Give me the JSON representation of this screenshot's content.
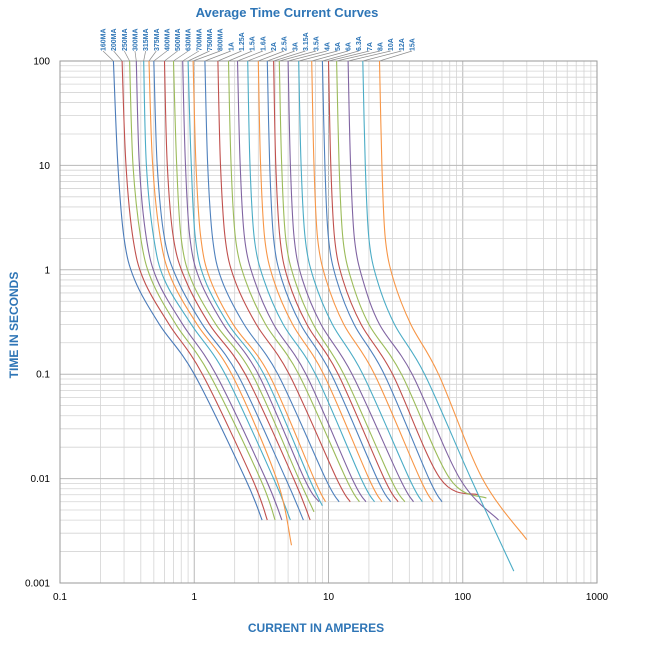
{
  "chart_data": {
    "type": "line",
    "title": "Average Time Current Curves",
    "xlabel": "CURRENT IN AMPERES",
    "ylabel": "TIME IN SECONDS",
    "x_scale": "log",
    "y_scale": "log",
    "xlim": [
      0.1,
      1000
    ],
    "ylim": [
      0.001,
      100
    ],
    "x_ticks": [
      "0.1",
      "1",
      "10",
      "100",
      "1000"
    ],
    "y_ticks": [
      "0.001",
      "0.01",
      "0.1",
      "1",
      "10",
      "100"
    ],
    "grid": true,
    "series": [
      {
        "name": "160MA",
        "color": "#4a7ab8",
        "points": [
          [
            0.25,
            100
          ],
          [
            0.27,
            10
          ],
          [
            0.3,
            2
          ],
          [
            0.36,
            0.8
          ],
          [
            0.55,
            0.3
          ],
          [
            1,
            0.1
          ],
          [
            2.4,
            0.01
          ],
          [
            3.2,
            0.004
          ]
        ]
      },
      {
        "name": "200MA",
        "color": "#c0504d",
        "points": [
          [
            0.29,
            100
          ],
          [
            0.31,
            10
          ],
          [
            0.35,
            2
          ],
          [
            0.42,
            0.8
          ],
          [
            0.65,
            0.3
          ],
          [
            1.15,
            0.1
          ],
          [
            2.7,
            0.01
          ],
          [
            3.5,
            0.004
          ]
        ]
      },
      {
        "name": "250MA",
        "color": "#9bbb59",
        "points": [
          [
            0.33,
            100
          ],
          [
            0.35,
            10
          ],
          [
            0.4,
            2
          ],
          [
            0.48,
            0.8
          ],
          [
            0.73,
            0.3
          ],
          [
            1.3,
            0.1
          ],
          [
            3.1,
            0.01
          ],
          [
            4,
            0.004
          ]
        ]
      },
      {
        "name": "300MA",
        "color": "#8064a2",
        "points": [
          [
            0.37,
            100
          ],
          [
            0.39,
            10
          ],
          [
            0.44,
            2
          ],
          [
            0.53,
            0.8
          ],
          [
            0.82,
            0.3
          ],
          [
            1.45,
            0.1
          ],
          [
            3.4,
            0.01
          ],
          [
            4.5,
            0.004
          ]
        ]
      },
      {
        "name": "315MA",
        "color": "#4bacc6",
        "points": [
          [
            0.42,
            100
          ],
          [
            0.44,
            10
          ],
          [
            0.5,
            2
          ],
          [
            0.6,
            0.8
          ],
          [
            0.95,
            0.3
          ],
          [
            1.7,
            0.1
          ],
          [
            3.9,
            0.01
          ],
          [
            5.2,
            0.004
          ]
        ]
      },
      {
        "name": "375MA",
        "color": "#f79646",
        "points": [
          [
            0.46,
            100
          ],
          [
            0.49,
            10
          ],
          [
            0.56,
            2
          ],
          [
            0.68,
            0.8
          ],
          [
            1.05,
            0.3
          ],
          [
            1.9,
            0.1
          ],
          [
            4.1,
            0.01
          ],
          [
            5.3,
            0.0023
          ]
        ]
      },
      {
        "name": "400MA",
        "color": "#4f81bd",
        "points": [
          [
            0.5,
            100
          ],
          [
            0.53,
            10
          ],
          [
            0.6,
            2
          ],
          [
            0.75,
            0.8
          ],
          [
            1.15,
            0.3
          ],
          [
            2.1,
            0.1
          ],
          [
            4.8,
            0.01
          ],
          [
            6.5,
            0.004
          ]
        ]
      },
      {
        "name": "500MA",
        "color": "#c0504d",
        "points": [
          [
            0.6,
            100
          ],
          [
            0.63,
            10
          ],
          [
            0.7,
            2
          ],
          [
            0.86,
            0.8
          ],
          [
            1.3,
            0.3
          ],
          [
            2.4,
            0.1
          ],
          [
            5.5,
            0.01
          ],
          [
            7.3,
            0.004
          ]
        ]
      },
      {
        "name": "630MA",
        "color": "#9bbb59",
        "points": [
          [
            0.7,
            100
          ],
          [
            0.74,
            10
          ],
          [
            0.8,
            2
          ],
          [
            0.95,
            0.8
          ],
          [
            1.45,
            0.3
          ],
          [
            2.7,
            0.1
          ],
          [
            6,
            0.01
          ],
          [
            7.8,
            0.0048
          ]
        ]
      },
      {
        "name": "700MA",
        "color": "#8064a2",
        "points": [
          [
            0.82,
            100
          ],
          [
            0.86,
            10
          ],
          [
            0.93,
            2
          ],
          [
            1.1,
            0.8
          ],
          [
            1.65,
            0.3
          ],
          [
            3,
            0.1
          ],
          [
            6.6,
            0.01
          ],
          [
            8.5,
            0.006
          ]
        ]
      },
      {
        "name": "750MA",
        "color": "#4bacc6",
        "points": [
          [
            0.9,
            100
          ],
          [
            0.95,
            10
          ],
          [
            1.02,
            2
          ],
          [
            1.2,
            0.8
          ],
          [
            1.8,
            0.3
          ],
          [
            3.3,
            0.1
          ],
          [
            7.2,
            0.01
          ],
          [
            9,
            0.0055
          ]
        ]
      },
      {
        "name": "800MA",
        "color": "#f79646",
        "points": [
          [
            0.98,
            100
          ],
          [
            1.03,
            10
          ],
          [
            1.12,
            2
          ],
          [
            1.32,
            0.8
          ],
          [
            1.95,
            0.3
          ],
          [
            3.6,
            0.1
          ],
          [
            7.8,
            0.01
          ],
          [
            9.5,
            0.006
          ]
        ]
      },
      {
        "name": "1A",
        "color": "#4f81bd",
        "points": [
          [
            1.2,
            100
          ],
          [
            1.26,
            10
          ],
          [
            1.37,
            2
          ],
          [
            1.6,
            0.8
          ],
          [
            2.35,
            0.3
          ],
          [
            4.2,
            0.1
          ],
          [
            9.5,
            0.01
          ],
          [
            12,
            0.006
          ]
        ]
      },
      {
        "name": "1.25A",
        "color": "#c0504d",
        "points": [
          [
            1.5,
            100
          ],
          [
            1.57,
            10
          ],
          [
            1.7,
            2
          ],
          [
            2,
            0.8
          ],
          [
            2.9,
            0.3
          ],
          [
            5.1,
            0.1
          ],
          [
            11.5,
            0.01
          ],
          [
            14.5,
            0.006
          ]
        ]
      },
      {
        "name": "1.5A",
        "color": "#9bbb59",
        "points": [
          [
            1.8,
            100
          ],
          [
            1.88,
            10
          ],
          [
            2.03,
            2
          ],
          [
            2.4,
            0.8
          ],
          [
            3.4,
            0.3
          ],
          [
            6,
            0.1
          ],
          [
            13.5,
            0.01
          ],
          [
            17,
            0.006
          ]
        ]
      },
      {
        "name": "1.6A",
        "color": "#8064a2",
        "points": [
          [
            2.1,
            100
          ],
          [
            2.2,
            10
          ],
          [
            2.37,
            2
          ],
          [
            2.8,
            0.8
          ],
          [
            3.9,
            0.3
          ],
          [
            6.8,
            0.1
          ],
          [
            15,
            0.01
          ],
          [
            19,
            0.006
          ]
        ]
      },
      {
        "name": "2A",
        "color": "#4bacc6",
        "points": [
          [
            2.5,
            100
          ],
          [
            2.6,
            10
          ],
          [
            2.8,
            2
          ],
          [
            3.3,
            0.8
          ],
          [
            4.6,
            0.3
          ],
          [
            8,
            0.1
          ],
          [
            17.5,
            0.01
          ],
          [
            22,
            0.006
          ]
        ]
      },
      {
        "name": "2.5A",
        "color": "#f79646",
        "points": [
          [
            3,
            100
          ],
          [
            3.12,
            10
          ],
          [
            3.35,
            2
          ],
          [
            3.9,
            0.8
          ],
          [
            5.4,
            0.3
          ],
          [
            9.2,
            0.1
          ],
          [
            20,
            0.01
          ],
          [
            25,
            0.006
          ]
        ]
      },
      {
        "name": "3A",
        "color": "#4f81bd",
        "points": [
          [
            3.5,
            100
          ],
          [
            3.65,
            10
          ],
          [
            3.9,
            2
          ],
          [
            4.5,
            0.8
          ],
          [
            6.2,
            0.3
          ],
          [
            10.5,
            0.1
          ],
          [
            23,
            0.01
          ],
          [
            29,
            0.006
          ]
        ]
      },
      {
        "name": "3.15A",
        "color": "#c0504d",
        "points": [
          [
            3.9,
            100
          ],
          [
            4.05,
            10
          ],
          [
            4.35,
            2
          ],
          [
            5,
            0.8
          ],
          [
            6.9,
            0.3
          ],
          [
            11.8,
            0.1
          ],
          [
            26,
            0.01
          ],
          [
            33,
            0.006
          ]
        ]
      },
      {
        "name": "3.5A",
        "color": "#9bbb59",
        "points": [
          [
            4.3,
            100
          ],
          [
            4.48,
            10
          ],
          [
            4.8,
            2
          ],
          [
            5.6,
            0.8
          ],
          [
            7.7,
            0.3
          ],
          [
            13,
            0.1
          ],
          [
            29,
            0.01
          ],
          [
            37,
            0.006
          ]
        ]
      },
      {
        "name": "4A",
        "color": "#8064a2",
        "points": [
          [
            5,
            100
          ],
          [
            5.2,
            10
          ],
          [
            5.55,
            2
          ],
          [
            6.4,
            0.8
          ],
          [
            8.8,
            0.3
          ],
          [
            15,
            0.1
          ],
          [
            34,
            0.01
          ],
          [
            43,
            0.006
          ]
        ]
      },
      {
        "name": "5A",
        "color": "#4bacc6",
        "points": [
          [
            6,
            100
          ],
          [
            6.25,
            10
          ],
          [
            6.7,
            2
          ],
          [
            7.8,
            0.8
          ],
          [
            10.7,
            0.3
          ],
          [
            18,
            0.1
          ],
          [
            40,
            0.01
          ],
          [
            50,
            0.006
          ]
        ]
      },
      {
        "name": "6A",
        "color": "#f79646",
        "points": [
          [
            7.5,
            100
          ],
          [
            7.8,
            10
          ],
          [
            8.3,
            2
          ],
          [
            9.6,
            0.8
          ],
          [
            13,
            0.3
          ],
          [
            22,
            0.1
          ],
          [
            48,
            0.01
          ],
          [
            60,
            0.006
          ]
        ]
      },
      {
        "name": "6.3A",
        "color": "#4f81bd",
        "points": [
          [
            9,
            100
          ],
          [
            9.4,
            10
          ],
          [
            10,
            2
          ],
          [
            11.5,
            0.8
          ],
          [
            15.5,
            0.3
          ],
          [
            26,
            0.1
          ],
          [
            56,
            0.01
          ],
          [
            70,
            0.006
          ]
        ]
      },
      {
        "name": "7A",
        "color": "#c0504d",
        "points": [
          [
            10,
            100
          ],
          [
            10.4,
            10
          ],
          [
            11.1,
            2
          ],
          [
            12.8,
            0.8
          ],
          [
            17.5,
            0.3
          ],
          [
            30,
            0.1
          ],
          [
            68,
            0.01
          ],
          [
            130,
            0.007
          ]
        ]
      },
      {
        "name": "8A",
        "color": "#9bbb59",
        "points": [
          [
            11.5,
            100
          ],
          [
            12,
            10
          ],
          [
            12.8,
            2
          ],
          [
            14.8,
            0.8
          ],
          [
            20,
            0.3
          ],
          [
            35,
            0.1
          ],
          [
            80,
            0.01
          ],
          [
            150,
            0.0065
          ]
        ]
      },
      {
        "name": "10A",
        "color": "#8064a2",
        "points": [
          [
            14,
            100
          ],
          [
            14.6,
            10
          ],
          [
            15.6,
            2
          ],
          [
            18,
            0.8
          ],
          [
            24,
            0.3
          ],
          [
            42,
            0.1
          ],
          [
            95,
            0.01
          ],
          [
            185,
            0.004
          ]
        ]
      },
      {
        "name": "12A",
        "color": "#4bacc6",
        "points": [
          [
            18,
            100
          ],
          [
            18.8,
            10
          ],
          [
            20,
            2
          ],
          [
            23,
            0.8
          ],
          [
            31,
            0.3
          ],
          [
            52,
            0.1
          ],
          [
            115,
            0.01
          ],
          [
            240,
            0.0013
          ]
        ]
      },
      {
        "name": "15A",
        "color": "#f79646",
        "points": [
          [
            24,
            100
          ],
          [
            25,
            10
          ],
          [
            26.5,
            2
          ],
          [
            30.5,
            0.8
          ],
          [
            41,
            0.3
          ],
          [
            66,
            0.1
          ],
          [
            140,
            0.01
          ],
          [
            300,
            0.0026
          ]
        ]
      }
    ]
  }
}
